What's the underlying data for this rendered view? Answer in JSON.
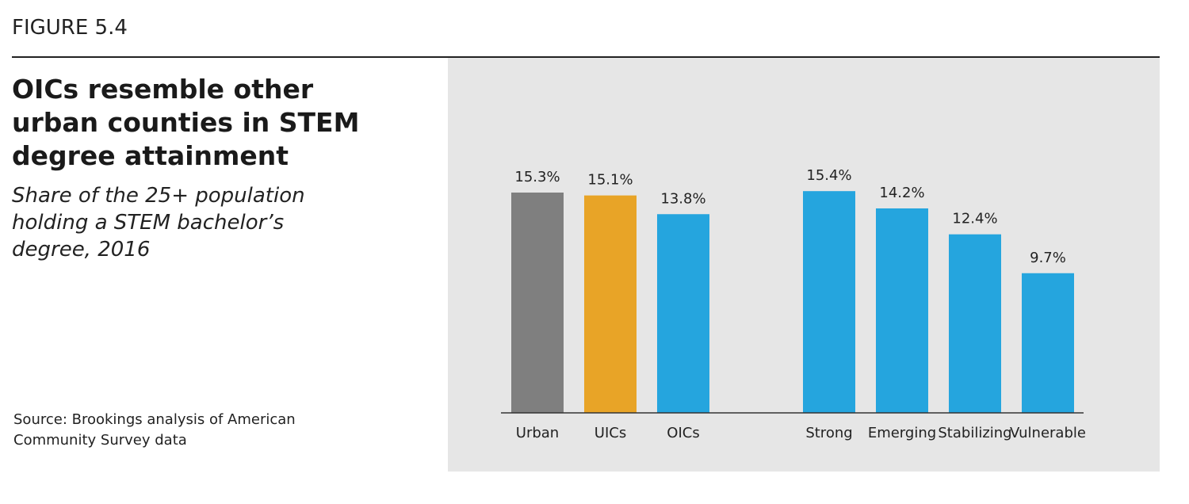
{
  "figure_label": "FIGURE 5.4",
  "chart_data": {
    "type": "bar",
    "title": "OICs resemble other urban counties in STEM degree attainment",
    "subtitle": "Share of the 25+ population holding a STEM bachelor’s degree, 2016",
    "source": "Source: Brookings analysis of American Community Survey data",
    "categories": [
      "Urban",
      "UICs",
      "OICs",
      null,
      "Strong",
      "Emerging",
      "Stabilizing",
      "Vulnerable"
    ],
    "values": [
      15.3,
      15.1,
      13.8,
      null,
      15.4,
      14.2,
      12.4,
      9.7
    ],
    "value_labels": [
      "15.3%",
      "15.1%",
      "13.8%",
      null,
      "15.4%",
      "14.2%",
      "12.4%",
      "9.7%"
    ],
    "colors": [
      "#7f7f7f",
      "#e8a427",
      "#25a5de",
      null,
      "#25a5de",
      "#25a5de",
      "#25a5de",
      "#25a5de"
    ]
  }
}
